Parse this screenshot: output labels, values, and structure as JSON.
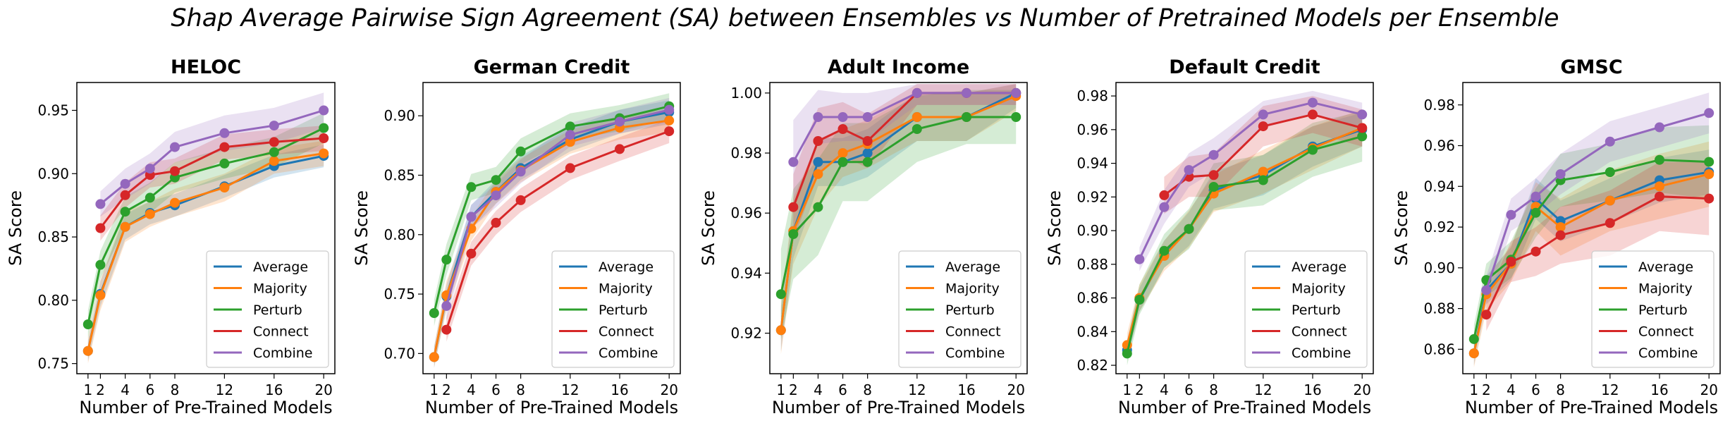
{
  "figure": {
    "title": "Shap Average Pairwise Sign Agreement (SA) between Ensembles vs Number of Pretrained Models per Ensemble"
  },
  "colors": {
    "Average": "#1f77b4",
    "Majority": "#ff7f0e",
    "Perturb": "#2ca02c",
    "Connect": "#d62728",
    "Combine": "#9467bd"
  },
  "chart_data": [
    {
      "type": "line",
      "title": "HELOC",
      "xlabel": "Number of Pre-Trained Models",
      "ylabel": "SA Score",
      "x": [
        1,
        2,
        4,
        6,
        8,
        12,
        16,
        20
      ],
      "xticks": [
        "1",
        "2",
        "4",
        "6",
        "8",
        "12",
        "16",
        "20"
      ],
      "yticks": [
        "0.75",
        "0.80",
        "0.85",
        "0.90",
        "0.95"
      ],
      "ylim": [
        0.742,
        0.972
      ],
      "legend_position": "lower-right",
      "series": [
        {
          "name": "Average",
          "values": [
            0.76,
            0.805,
            0.858,
            0.869,
            0.875,
            0.89,
            0.906,
            0.914
          ],
          "lo": [
            0.752,
            0.795,
            0.848,
            0.86,
            0.866,
            0.881,
            0.897,
            0.905
          ],
          "hi": [
            0.768,
            0.815,
            0.868,
            0.878,
            0.884,
            0.899,
            0.915,
            0.923
          ]
        },
        {
          "name": "Majority",
          "values": [
            0.76,
            0.804,
            0.858,
            0.868,
            0.877,
            0.889,
            0.91,
            0.916
          ],
          "lo": [
            0.75,
            0.792,
            0.846,
            0.858,
            0.866,
            0.878,
            0.9,
            0.906
          ],
          "hi": [
            0.77,
            0.816,
            0.87,
            0.878,
            0.888,
            0.9,
            0.92,
            0.926
          ]
        },
        {
          "name": "Perturb",
          "values": [
            0.781,
            0.828,
            0.87,
            0.881,
            0.897,
            0.908,
            0.917,
            0.936
          ],
          "lo": [
            0.77,
            0.817,
            0.858,
            0.869,
            0.885,
            0.896,
            0.905,
            0.924
          ],
          "hi": [
            0.792,
            0.839,
            0.882,
            0.893,
            0.909,
            0.92,
            0.929,
            0.948
          ]
        },
        {
          "name": "Connect",
          "values": [
            null,
            0.857,
            0.883,
            0.899,
            0.902,
            0.921,
            0.925,
            0.928
          ],
          "lo": [
            null,
            0.847,
            0.873,
            0.889,
            0.892,
            0.911,
            0.915,
            0.918
          ],
          "hi": [
            null,
            0.867,
            0.893,
            0.909,
            0.912,
            0.931,
            0.935,
            0.938
          ]
        },
        {
          "name": "Combine",
          "values": [
            null,
            0.876,
            0.892,
            0.904,
            0.921,
            0.932,
            0.938,
            0.95
          ],
          "lo": [
            null,
            0.866,
            0.88,
            0.892,
            0.909,
            0.918,
            0.924,
            0.936
          ],
          "hi": [
            null,
            0.886,
            0.904,
            0.916,
            0.933,
            0.946,
            0.952,
            0.964
          ]
        }
      ]
    },
    {
      "type": "line",
      "title": "German Credit",
      "xlabel": "Number of Pre-Trained Models",
      "ylabel": "SA Score",
      "x": [
        1,
        2,
        4,
        6,
        8,
        12,
        16,
        20
      ],
      "xticks": [
        "1",
        "2",
        "4",
        "6",
        "8",
        "12",
        "16",
        "20"
      ],
      "yticks": [
        "0.70",
        "0.75",
        "0.80",
        "0.85",
        "0.90"
      ],
      "ylim": [
        0.683,
        0.928
      ],
      "legend_position": "lower-right",
      "series": [
        {
          "name": "Average",
          "values": [
            0.697,
            0.748,
            0.815,
            0.836,
            0.856,
            0.88,
            0.895,
            0.903
          ],
          "lo": [
            0.688,
            0.738,
            0.805,
            0.826,
            0.846,
            0.87,
            0.885,
            0.893
          ],
          "hi": [
            0.706,
            0.758,
            0.825,
            0.846,
            0.866,
            0.89,
            0.905,
            0.913
          ]
        },
        {
          "name": "Majority",
          "values": [
            0.697,
            0.749,
            0.805,
            0.836,
            0.854,
            0.878,
            0.89,
            0.896
          ],
          "lo": [
            0.688,
            0.737,
            0.795,
            0.826,
            0.844,
            0.868,
            0.88,
            0.886
          ],
          "hi": [
            0.706,
            0.761,
            0.815,
            0.846,
            0.864,
            0.888,
            0.9,
            0.906
          ]
        },
        {
          "name": "Perturb",
          "values": [
            0.734,
            0.779,
            0.84,
            0.846,
            0.87,
            0.891,
            0.898,
            0.908
          ],
          "lo": [
            0.723,
            0.766,
            0.829,
            0.835,
            0.859,
            0.88,
            0.887,
            0.897
          ],
          "hi": [
            0.745,
            0.792,
            0.851,
            0.857,
            0.881,
            0.902,
            0.909,
            0.919
          ]
        },
        {
          "name": "Connect",
          "values": [
            null,
            0.72,
            0.784,
            0.81,
            0.829,
            0.856,
            0.872,
            0.887
          ],
          "lo": [
            null,
            0.71,
            0.774,
            0.8,
            0.819,
            0.846,
            0.862,
            0.877
          ],
          "hi": [
            null,
            0.73,
            0.794,
            0.82,
            0.839,
            0.866,
            0.882,
            0.897
          ]
        },
        {
          "name": "Combine",
          "values": [
            null,
            0.74,
            0.815,
            0.833,
            0.853,
            0.884,
            0.895,
            0.905
          ],
          "lo": [
            null,
            0.728,
            0.805,
            0.823,
            0.843,
            0.874,
            0.885,
            0.895
          ],
          "hi": [
            null,
            0.752,
            0.825,
            0.843,
            0.863,
            0.894,
            0.905,
            0.915
          ]
        }
      ]
    },
    {
      "type": "line",
      "title": "Adult Income",
      "xlabel": "Number of Pre-Trained Models",
      "ylabel": "SA Score",
      "x": [
        1,
        2,
        4,
        6,
        8,
        12,
        16,
        20
      ],
      "xticks": [
        "1",
        "2",
        "4",
        "6",
        "8",
        "12",
        "16",
        "20"
      ],
      "yticks": [
        "0.92",
        "0.94",
        "0.96",
        "0.98",
        "1.00"
      ],
      "ylim": [
        0.9065,
        1.0035
      ],
      "legend_position": "lower-right",
      "series": [
        {
          "name": "Average",
          "values": [
            0.921,
            0.954,
            0.977,
            0.977,
            0.98,
            0.992,
            0.992,
            1.0
          ],
          "lo": [
            0.914,
            0.945,
            0.969,
            0.969,
            0.972,
            0.984,
            0.984,
            0.995
          ],
          "hi": [
            0.928,
            0.963,
            0.985,
            0.985,
            0.988,
            1.0,
            1.0,
            1.003
          ]
        },
        {
          "name": "Majority",
          "values": [
            0.921,
            0.954,
            0.973,
            0.98,
            0.983,
            0.992,
            0.992,
            0.999
          ],
          "lo": [
            0.913,
            0.943,
            0.962,
            0.972,
            0.975,
            0.984,
            0.984,
            0.994
          ],
          "hi": [
            0.929,
            0.965,
            0.984,
            0.988,
            0.991,
            1.0,
            1.0,
            1.003
          ]
        },
        {
          "name": "Perturb",
          "values": [
            0.933,
            0.953,
            0.962,
            0.977,
            0.977,
            0.988,
            0.992,
            0.992
          ],
          "lo": [
            0.918,
            0.938,
            0.946,
            0.964,
            0.964,
            0.977,
            0.983,
            0.983
          ],
          "hi": [
            0.948,
            0.968,
            0.978,
            0.99,
            0.99,
            0.999,
            1.001,
            1.001
          ]
        },
        {
          "name": "Connect",
          "values": [
            null,
            0.962,
            0.984,
            0.988,
            0.984,
            1.0,
            1.0,
            1.0
          ],
          "lo": [
            null,
            0.951,
            0.973,
            0.979,
            0.975,
            0.996,
            0.996,
            0.996
          ],
          "hi": [
            null,
            0.973,
            0.995,
            0.997,
            0.993,
            1.003,
            1.003,
            1.003
          ]
        },
        {
          "name": "Combine",
          "values": [
            null,
            0.977,
            0.992,
            0.992,
            0.992,
            1.0,
            1.0,
            1.0
          ],
          "lo": [
            null,
            0.963,
            0.983,
            0.984,
            0.984,
            0.996,
            0.996,
            0.996
          ],
          "hi": [
            null,
            0.991,
            1.001,
            1.0,
            1.0,
            1.003,
            1.003,
            1.003
          ]
        }
      ]
    },
    {
      "type": "line",
      "title": "Default Credit",
      "xlabel": "Number of Pre-Trained Models",
      "ylabel": "SA Score",
      "x": [
        1,
        2,
        4,
        6,
        8,
        12,
        16,
        20
      ],
      "xticks": [
        "1",
        "2",
        "4",
        "6",
        "8",
        "12",
        "16",
        "20"
      ],
      "yticks": [
        "0.82",
        "0.84",
        "0.86",
        "0.88",
        "0.90",
        "0.92",
        "0.94",
        "0.96",
        "0.98"
      ],
      "ylim": [
        0.815,
        0.988
      ],
      "legend_position": "lower-right",
      "series": [
        {
          "name": "Average",
          "values": [
            0.829,
            0.859,
            0.886,
            0.901,
            0.924,
            0.933,
            0.95,
            0.96
          ],
          "lo": [
            0.823,
            0.852,
            0.878,
            0.891,
            0.913,
            0.921,
            0.938,
            0.95
          ],
          "hi": [
            0.835,
            0.866,
            0.894,
            0.911,
            0.935,
            0.945,
            0.962,
            0.97
          ]
        },
        {
          "name": "Majority",
          "values": [
            0.832,
            0.86,
            0.885,
            0.901,
            0.922,
            0.935,
            0.949,
            0.961
          ],
          "lo": [
            0.825,
            0.852,
            0.876,
            0.89,
            0.911,
            0.922,
            0.936,
            0.95
          ],
          "hi": [
            0.839,
            0.868,
            0.894,
            0.912,
            0.933,
            0.948,
            0.962,
            0.972
          ]
        },
        {
          "name": "Perturb",
          "values": [
            0.827,
            0.859,
            0.888,
            0.901,
            0.926,
            0.93,
            0.948,
            0.956
          ],
          "lo": [
            0.82,
            0.85,
            0.878,
            0.889,
            0.912,
            0.915,
            0.932,
            0.941
          ],
          "hi": [
            0.834,
            0.868,
            0.898,
            0.913,
            0.94,
            0.945,
            0.964,
            0.971
          ]
        },
        {
          "name": "Connect",
          "values": [
            null,
            null,
            0.921,
            0.932,
            0.933,
            0.962,
            0.969,
            0.961
          ],
          "lo": [
            null,
            null,
            0.91,
            0.92,
            0.92,
            0.95,
            0.958,
            0.95
          ],
          "hi": [
            null,
            null,
            0.932,
            0.944,
            0.946,
            0.974,
            0.98,
            0.972
          ]
        },
        {
          "name": "Combine",
          "values": [
            null,
            0.883,
            0.914,
            0.936,
            0.945,
            0.969,
            0.976,
            0.969
          ],
          "lo": [
            null,
            0.876,
            0.904,
            0.926,
            0.935,
            0.961,
            0.969,
            0.962
          ],
          "hi": [
            null,
            0.89,
            0.924,
            0.946,
            0.955,
            0.977,
            0.983,
            0.976
          ]
        }
      ]
    },
    {
      "type": "line",
      "title": "GMSC",
      "xlabel": "Number of Pre-Trained Models",
      "ylabel": "SA Score",
      "x": [
        1,
        2,
        4,
        6,
        8,
        12,
        16,
        20
      ],
      "xticks": [
        "1",
        "2",
        "4",
        "6",
        "8",
        "12",
        "16",
        "20"
      ],
      "yticks": [
        "0.86",
        "0.88",
        "0.90",
        "0.92",
        "0.94",
        "0.96",
        "0.98"
      ],
      "ylim": [
        0.848,
        0.991
      ],
      "legend_position": "lower-right",
      "series": [
        {
          "name": "Average",
          "values": [
            0.858,
            0.889,
            0.902,
            0.934,
            0.923,
            0.933,
            0.943,
            0.947
          ],
          "lo": [
            0.852,
            0.882,
            0.894,
            0.924,
            0.913,
            0.922,
            0.932,
            0.936
          ],
          "hi": [
            0.864,
            0.896,
            0.91,
            0.944,
            0.933,
            0.944,
            0.954,
            0.958
          ]
        },
        {
          "name": "Majority",
          "values": [
            0.858,
            0.887,
            0.902,
            0.93,
            0.92,
            0.933,
            0.94,
            0.946
          ],
          "lo": [
            0.851,
            0.879,
            0.893,
            0.918,
            0.906,
            0.918,
            0.924,
            0.93
          ],
          "hi": [
            0.865,
            0.895,
            0.911,
            0.942,
            0.934,
            0.948,
            0.956,
            0.962
          ]
        },
        {
          "name": "Perturb",
          "values": [
            0.865,
            0.894,
            0.904,
            0.927,
            0.943,
            0.947,
            0.953,
            0.952
          ],
          "lo": [
            0.858,
            0.886,
            0.895,
            0.915,
            0.93,
            0.933,
            0.937,
            0.934
          ],
          "hi": [
            0.872,
            0.902,
            0.913,
            0.939,
            0.956,
            0.961,
            0.969,
            0.97
          ]
        },
        {
          "name": "Connect",
          "values": [
            null,
            0.877,
            0.903,
            0.908,
            0.916,
            0.922,
            0.935,
            0.934
          ],
          "lo": [
            null,
            0.869,
            0.893,
            0.896,
            0.902,
            0.906,
            0.918,
            0.916
          ],
          "hi": [
            null,
            0.885,
            0.913,
            0.92,
            0.93,
            0.938,
            0.952,
            0.952
          ]
        },
        {
          "name": "Combine",
          "values": [
            null,
            0.889,
            0.926,
            0.935,
            0.946,
            0.962,
            0.969,
            0.976
          ],
          "lo": [
            null,
            0.882,
            0.918,
            0.926,
            0.936,
            0.952,
            0.959,
            0.966
          ],
          "hi": [
            null,
            0.896,
            0.934,
            0.944,
            0.956,
            0.972,
            0.979,
            0.986
          ]
        }
      ]
    }
  ]
}
